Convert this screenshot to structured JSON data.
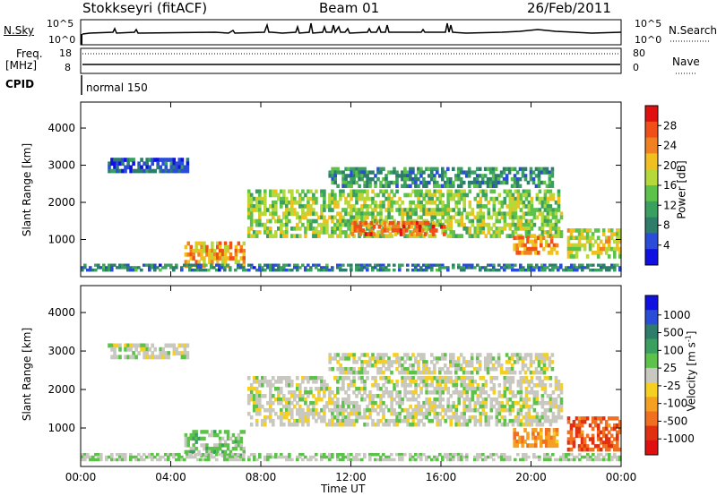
{
  "header": {
    "radar": "Stokkseyri (fitACF)",
    "beam": "Beam 01",
    "date": "26/Feb/2011"
  },
  "strip_labels": {
    "nsky": "N.Sky",
    "nsky_ticks": [
      "10^5",
      "10^0"
    ],
    "nsearch": "N.Search",
    "nsearch_ticks": [
      "10^5",
      "10^0"
    ],
    "freq": "Freq.",
    "freq_unit": "[MHz]",
    "freq_ticks": [
      "18",
      "8"
    ],
    "nave": "Nave",
    "nave_ticks": [
      "80",
      "0"
    ],
    "cpid": "CPID",
    "cpid_value": "normal 150"
  },
  "colors": {
    "power_scale": [
      "#1010e0",
      "#2a4cd8",
      "#2e7d6a",
      "#3aa060",
      "#5cc24a",
      "#b5d83a",
      "#f0c020",
      "#f08020",
      "#f05018",
      "#e01010"
    ],
    "velocity_scale": [
      "#1010e0",
      "#2a4cd8",
      "#2e7d6a",
      "#3aa060",
      "#5cc24a",
      "#c8c8c0",
      "#f5d020",
      "#f5a020",
      "#f07020",
      "#e03010",
      "#e01010"
    ],
    "ground_scatter": "#c8c8c0"
  },
  "chart_data": [
    {
      "type": "heatmap",
      "title": "Power",
      "ylabel": "Slant Range [km]",
      "ylim": [
        0,
        4700
      ],
      "y_ticks": [
        "1000",
        "2000",
        "3000",
        "4000"
      ],
      "colorbar_label": "Power [dB]",
      "colorbar_ticks": [
        "4",
        "8",
        "12",
        "16",
        "20",
        "24",
        "28"
      ],
      "colorbar_range": [
        0,
        32
      ],
      "regions": [
        {
          "t0": 4.6,
          "t1": 7.3,
          "r0": 250,
          "r1": 950,
          "value": 22
        },
        {
          "t0": 7.4,
          "t1": 21.4,
          "r0": 1050,
          "r1": 2350,
          "value": 16
        },
        {
          "t0": 12.0,
          "t1": 16.2,
          "r0": 1100,
          "r1": 1500,
          "value": 26
        },
        {
          "t0": 19.2,
          "t1": 21.2,
          "r0": 600,
          "r1": 1100,
          "value": 24
        },
        {
          "t0": 21.6,
          "t1": 24.0,
          "r0": 500,
          "r1": 1300,
          "value": 18
        },
        {
          "t0": 11.0,
          "t1": 21.0,
          "r0": 2400,
          "r1": 2950,
          "value": 10
        },
        {
          "t0": 1.2,
          "t1": 4.8,
          "r0": 2800,
          "r1": 3200,
          "value": 6
        },
        {
          "t0": 0.0,
          "t1": 24.0,
          "r0": 150,
          "r1": 350,
          "value": 8
        }
      ]
    },
    {
      "type": "heatmap",
      "title": "Velocity",
      "ylabel": "Slant Range [km]",
      "ylim": [
        0,
        4700
      ],
      "y_ticks": [
        "1000",
        "2000",
        "3000",
        "4000"
      ],
      "colorbar_label": "Velocity [m s^-1]",
      "colorbar_ticks": [
        "1000",
        "500",
        "100",
        "25",
        "-25",
        "-100",
        "-500",
        "-1000"
      ],
      "colorbar_range": [
        -1000,
        1000
      ],
      "regions": [
        {
          "t0": 4.6,
          "t1": 7.3,
          "r0": 250,
          "r1": 950,
          "value": 150
        },
        {
          "t0": 7.4,
          "t1": 21.4,
          "r0": 1050,
          "r1": 2350,
          "value": 0
        },
        {
          "t0": 19.2,
          "t1": 21.2,
          "r0": 500,
          "r1": 1000,
          "value": -400
        },
        {
          "t0": 21.6,
          "t1": 24.0,
          "r0": 400,
          "r1": 1300,
          "value": -600
        },
        {
          "t0": 11.0,
          "t1": 21.0,
          "r0": 2400,
          "r1": 2950,
          "value": 0
        },
        {
          "t0": 1.2,
          "t1": 4.8,
          "r0": 2800,
          "r1": 3200,
          "value": 0
        },
        {
          "t0": 0.0,
          "t1": 24.0,
          "r0": 150,
          "r1": 350,
          "value": 60
        }
      ]
    }
  ],
  "x_axis": {
    "label": "Time UT",
    "ticks": [
      "00:00",
      "04:00",
      "08:00",
      "12:00",
      "16:00",
      "20:00",
      "00:00"
    ],
    "range_hours": [
      0,
      24
    ]
  }
}
